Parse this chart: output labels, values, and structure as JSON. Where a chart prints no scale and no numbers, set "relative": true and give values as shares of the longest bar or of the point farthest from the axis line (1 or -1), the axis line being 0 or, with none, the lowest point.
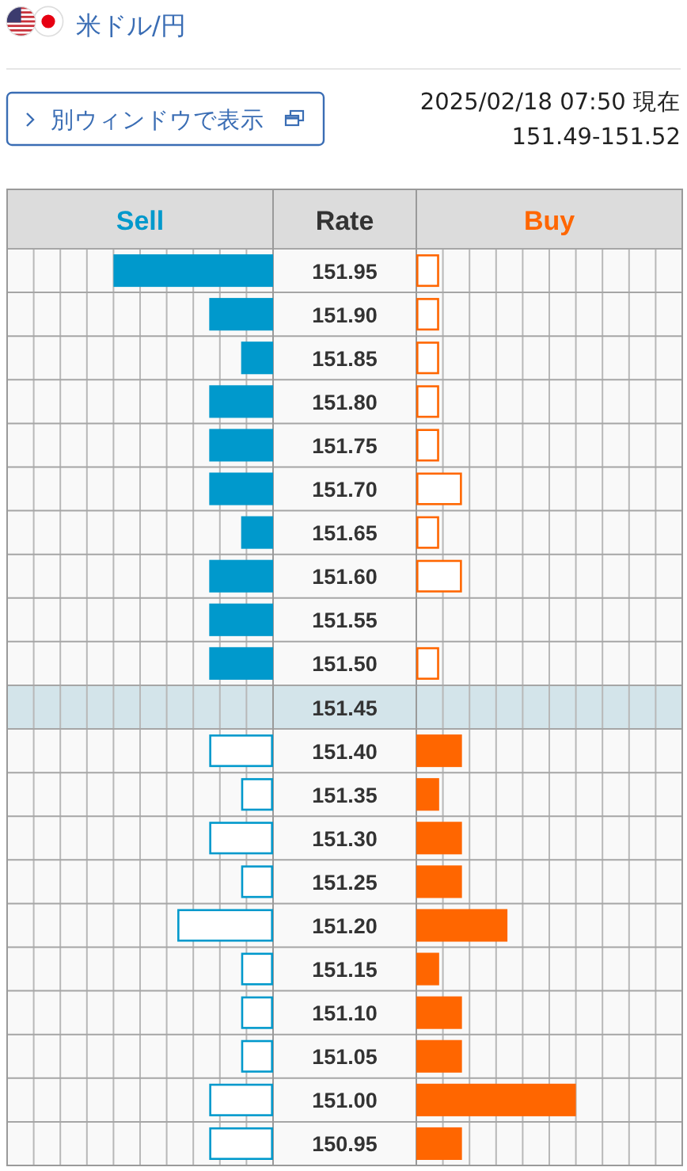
{
  "chart_data": [
    {
      "type": "bar",
      "orientation": "horizontal",
      "relative": true,
      "title": "米ドル/円",
      "annotations": [
        "別ウィンドウで表示"
      ],
      "ylabel": "Rate",
      "categories": [
        "151.95",
        "151.90",
        "151.85",
        "151.80",
        "151.75",
        "151.70",
        "151.65",
        "151.60",
        "151.55",
        "151.50",
        "151.45",
        "151.40",
        "151.35",
        "151.30",
        "151.25",
        "151.20",
        "151.15",
        "151.10",
        "151.05",
        "151.00",
        "150.95"
      ],
      "series": [
        {
          "name": "Sell",
          "color": "#0099cc",
          "values": [
            -1,
            -0.4,
            -0.2,
            -0.4,
            -0.4,
            -0.4,
            -0.2,
            -0.4,
            -0.4,
            -0.4,
            null,
            -0.4,
            -0.2,
            -0.4,
            -0.2,
            -0.6,
            -0.2,
            -0.2,
            -0.2,
            -0.4,
            -0.4
          ]
        }
      ],
      "bands": [
        {
          "axis": "y",
          "from": "151.45",
          "to": "151.45",
          "color": "#d3e4ea"
        }
      ],
      "grid": true
    },
    {
      "type": "bar",
      "orientation": "horizontal",
      "relative": true,
      "tick_labels": false,
      "subtitle": "2025/02/18 07:50 現在",
      "annotations": [
        "151.49-151.52"
      ],
      "categories": [
        "151.95",
        "151.90",
        "151.85",
        "151.80",
        "151.75",
        "151.70",
        "151.65",
        "151.60",
        "151.55",
        "151.50",
        "151.45",
        "151.40",
        "151.35",
        "151.30",
        "151.25",
        "151.20",
        "151.15",
        "151.10",
        "151.05",
        "151.00",
        "150.95"
      ],
      "series": [
        {
          "name": "Buy",
          "color": "#ff6600",
          "values": [
            0.143,
            0.143,
            0.143,
            0.143,
            0.143,
            0.286,
            0.143,
            0.286,
            null,
            0.143,
            null,
            0.286,
            0.143,
            0.286,
            0.286,
            0.571,
            0.143,
            0.286,
            0.286,
            1,
            0.286
          ]
        }
      ],
      "bands": [
        {
          "axis": "y",
          "from": "151.45",
          "to": "151.45",
          "color": "#d3e4ea"
        }
      ],
      "grid": true
    }
  ]
}
